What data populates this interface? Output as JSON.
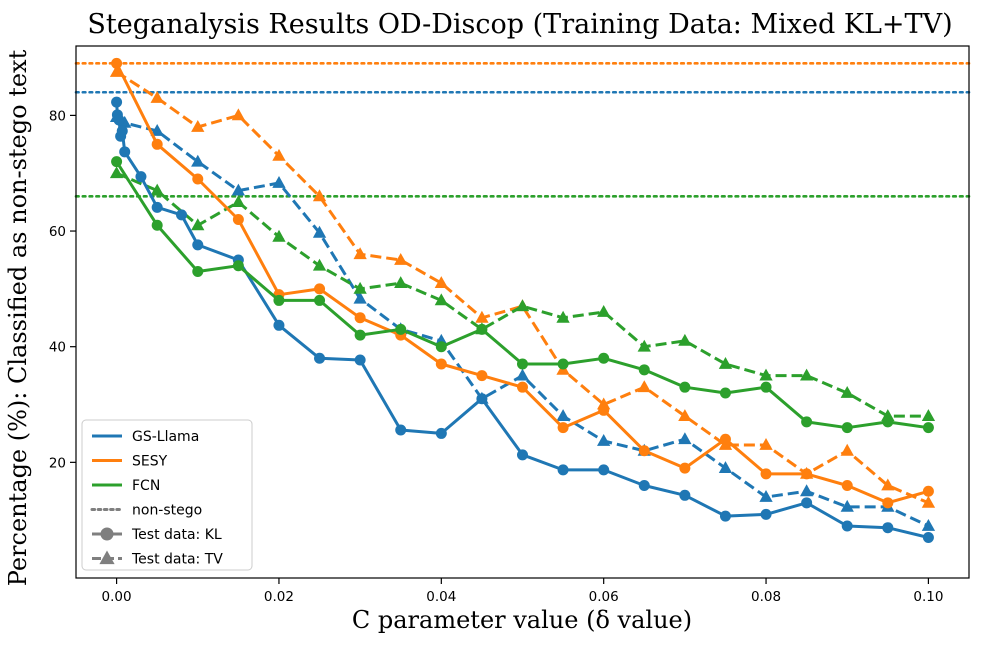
{
  "chart_data": {
    "type": "line",
    "title": "Steganalysis Results OD-Discop (Training Data: Mixed KL+TV)",
    "xlabel": "C parameter value (δ value)",
    "ylabel": "Percentage (%): Classified as non-stego text",
    "xlim": [
      -0.005,
      0.105
    ],
    "ylim": [
      0,
      92
    ],
    "xticks": [
      0.0,
      0.02,
      0.04,
      0.06,
      0.08,
      0.1
    ],
    "xtick_labels": [
      "0.00",
      "0.02",
      "0.04",
      "0.06",
      "0.08",
      "0.10"
    ],
    "yticks": [
      20,
      40,
      60,
      80
    ],
    "ytick_labels": [
      "20",
      "40",
      "60",
      "80"
    ],
    "grid": false,
    "legend_position": "lower-left",
    "colors": {
      "GS-Llama": "#1f77b4",
      "SESY": "#ff7f0e",
      "FCN": "#2ca02c",
      "neutral": "#7f7f7f"
    },
    "reference_lines": [
      {
        "name": "GS-Llama non-stego",
        "series": "GS-Llama",
        "y": 84
      },
      {
        "name": "SESY non-stego",
        "series": "SESY",
        "y": 89
      },
      {
        "name": "FCN non-stego",
        "series": "FCN",
        "y": 66
      }
    ],
    "series": [
      {
        "name": "GS-Llama",
        "test_data": "KL",
        "marker": "circle",
        "style": "solid",
        "x": [
          0.0,
          0.0001,
          0.0003,
          0.0005,
          0.0007,
          0.001,
          0.003,
          0.005,
          0.008,
          0.01,
          0.015,
          0.02,
          0.025,
          0.03,
          0.035,
          0.04,
          0.045,
          0.05,
          0.055,
          0.06,
          0.065,
          0.07,
          0.075,
          0.08,
          0.085,
          0.09,
          0.095,
          0.1
        ],
        "y": [
          82.3,
          80.1,
          79.2,
          76.4,
          77.3,
          73.7,
          69.4,
          64.1,
          62.8,
          57.6,
          55.0,
          43.7,
          38.0,
          37.7,
          25.6,
          25.0,
          31.0,
          21.3,
          18.7,
          18.7,
          16.0,
          14.3,
          10.7,
          11.0,
          13.0,
          9.0,
          8.7,
          7.0
        ]
      },
      {
        "name": "GS-Llama",
        "test_data": "TV",
        "marker": "triangle",
        "style": "dashed",
        "x": [
          0.0,
          0.001,
          0.005,
          0.01,
          0.015,
          0.02,
          0.025,
          0.03,
          0.035,
          0.04,
          0.045,
          0.05,
          0.055,
          0.06,
          0.065,
          0.07,
          0.075,
          0.08,
          0.085,
          0.09,
          0.095,
          0.1
        ],
        "y": [
          79.7,
          78.7,
          77.3,
          72.0,
          67.0,
          68.3,
          59.7,
          48.3,
          43.0,
          41.0,
          31.0,
          35.0,
          28.0,
          23.7,
          22.0,
          24.0,
          19.0,
          14.0,
          15.0,
          12.3,
          12.3,
          9.0
        ]
      },
      {
        "name": "SESY",
        "test_data": "KL",
        "marker": "circle",
        "style": "solid",
        "x": [
          0.0,
          0.005,
          0.01,
          0.015,
          0.02,
          0.025,
          0.03,
          0.035,
          0.04,
          0.045,
          0.05,
          0.055,
          0.06,
          0.065,
          0.07,
          0.075,
          0.08,
          0.085,
          0.09,
          0.095,
          0.1
        ],
        "y": [
          89.0,
          75.0,
          69.0,
          62.0,
          49.0,
          50.0,
          45.0,
          42.0,
          37.0,
          35.0,
          33.0,
          26.0,
          29.0,
          22.0,
          19.0,
          24.0,
          18.0,
          18.0,
          16.0,
          13.0,
          15.0
        ]
      },
      {
        "name": "SESY",
        "test_data": "TV",
        "marker": "triangle",
        "style": "dashed",
        "x": [
          0.0,
          0.005,
          0.01,
          0.015,
          0.02,
          0.025,
          0.03,
          0.035,
          0.04,
          0.045,
          0.05,
          0.055,
          0.06,
          0.065,
          0.07,
          0.075,
          0.08,
          0.085,
          0.09,
          0.095,
          0.1
        ],
        "y": [
          87.5,
          83.0,
          78.0,
          80.0,
          73.0,
          66.0,
          56.0,
          55.0,
          51.0,
          45.0,
          47.0,
          36.0,
          30.0,
          33.0,
          28.0,
          23.0,
          23.0,
          18.0,
          22.0,
          16.0,
          13.0
        ]
      },
      {
        "name": "FCN",
        "test_data": "KL",
        "marker": "circle",
        "style": "solid",
        "x": [
          0.0,
          0.005,
          0.01,
          0.015,
          0.02,
          0.025,
          0.03,
          0.035,
          0.04,
          0.045,
          0.05,
          0.055,
          0.06,
          0.065,
          0.07,
          0.075,
          0.08,
          0.085,
          0.09,
          0.095,
          0.1
        ],
        "y": [
          72.0,
          61.0,
          53.0,
          54.0,
          48.0,
          48.0,
          42.0,
          43.0,
          40.0,
          43.0,
          37.0,
          37.0,
          38.0,
          36.0,
          33.0,
          32.0,
          33.0,
          27.0,
          26.0,
          27.0,
          26.0
        ]
      },
      {
        "name": "FCN",
        "test_data": "TV",
        "marker": "triangle",
        "style": "dashed",
        "x": [
          0.0,
          0.005,
          0.01,
          0.015,
          0.02,
          0.025,
          0.03,
          0.035,
          0.04,
          0.045,
          0.05,
          0.055,
          0.06,
          0.065,
          0.07,
          0.075,
          0.08,
          0.085,
          0.09,
          0.095,
          0.1
        ],
        "y": [
          70.0,
          67.0,
          61.0,
          65.0,
          59.0,
          54.0,
          50.0,
          51.0,
          48.0,
          43.0,
          47.0,
          45.0,
          46.0,
          40.0,
          41.0,
          37.0,
          35.0,
          35.0,
          32.0,
          28.0,
          28.0
        ]
      }
    ],
    "legend": [
      {
        "label": "GS-Llama",
        "kind": "line",
        "color_key": "GS-Llama"
      },
      {
        "label": "SESY",
        "kind": "line",
        "color_key": "SESY"
      },
      {
        "label": "FCN",
        "kind": "line",
        "color_key": "FCN"
      },
      {
        "label": "non-stego",
        "kind": "dotted",
        "color_key": "neutral"
      },
      {
        "label": "Test data: KL",
        "kind": "circle",
        "color_key": "neutral"
      },
      {
        "label": "Test data: TV",
        "kind": "triangle",
        "color_key": "neutral"
      }
    ]
  }
}
